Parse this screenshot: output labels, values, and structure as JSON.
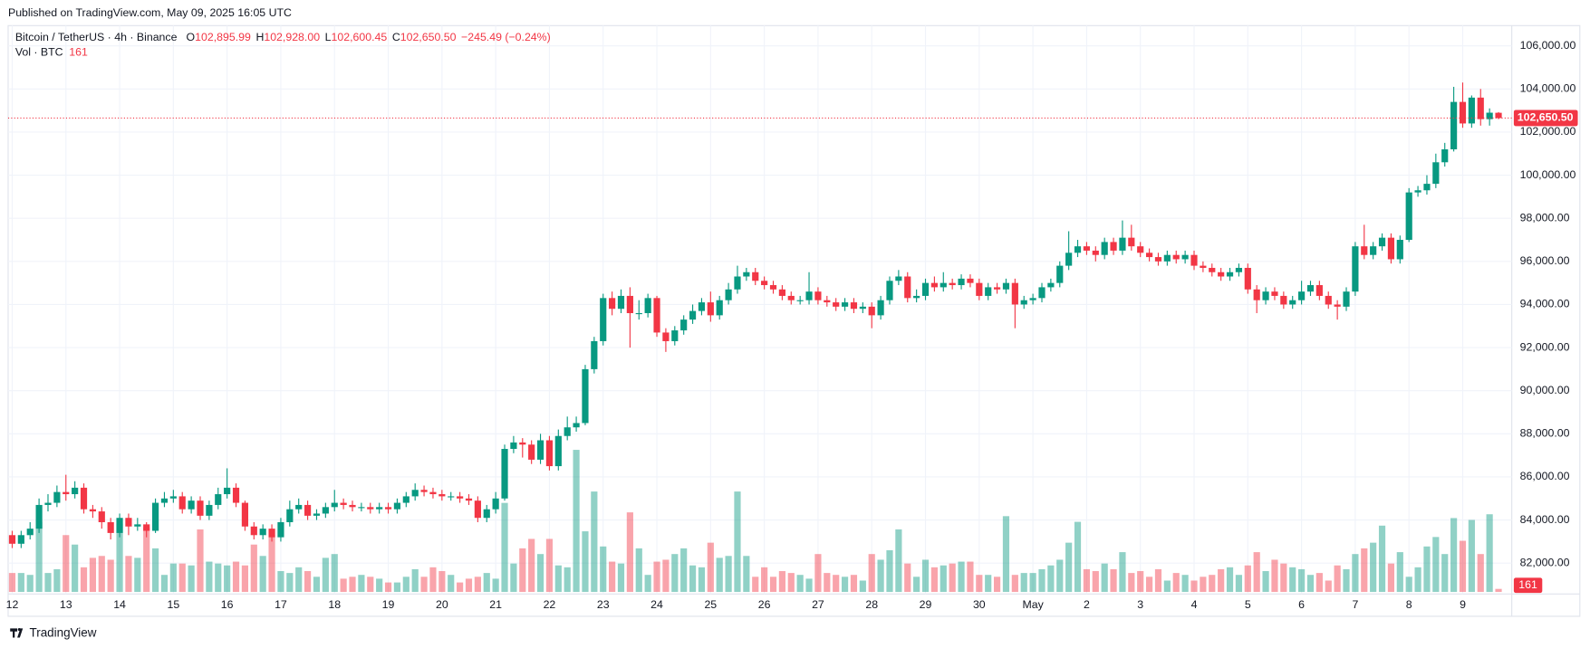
{
  "header": {
    "published": "Published on TradingView.com, May 09, 2025 16:05 UTC",
    "brand": "TradingView"
  },
  "chart_data": {
    "type": "candlestick",
    "title": "Bitcoin / TetherUS · 4h · Binance",
    "legend": [
      {
        "key": "O",
        "value": "102,895.99"
      },
      {
        "key": "H",
        "value": "102,928.00"
      },
      {
        "key": "L",
        "value": "102,600.45"
      },
      {
        "key": "C",
        "value": "102,650.50"
      }
    ],
    "change": "−245.49 (−0.24%)",
    "volume_title": "Vol · BTC",
    "colors": {
      "up": "#089981",
      "down": "#f23645"
    },
    "grid": true,
    "ylim": [
      80570,
      106940
    ],
    "yticks": [
      {
        "value": 82000,
        "label": "82,000.00"
      },
      {
        "value": 84000,
        "label": "84,000.00"
      },
      {
        "value": 86000,
        "label": "86,000.00"
      },
      {
        "value": 88000,
        "label": "88,000.00"
      },
      {
        "value": 90000,
        "label": "90,000.00"
      },
      {
        "value": 92000,
        "label": "92,000.00"
      },
      {
        "value": 94000,
        "label": "94,000.00"
      },
      {
        "value": 96000,
        "label": "96,000.00"
      },
      {
        "value": 98000,
        "label": "98,000.00"
      },
      {
        "value": 100000,
        "label": "100,000.00"
      },
      {
        "value": 102000,
        "label": "102,000.00"
      },
      {
        "value": 104000,
        "label": "104,000.00"
      },
      {
        "value": 106000,
        "label": "106,000.00"
      }
    ],
    "x_labels": [
      "12",
      "13",
      "14",
      "15",
      "16",
      "17",
      "18",
      "19",
      "20",
      "21",
      "22",
      "23",
      "24",
      "25",
      "26",
      "27",
      "28",
      "29",
      "30",
      "May",
      "2",
      "3",
      "4",
      "5",
      "6",
      "7",
      "8",
      "9"
    ],
    "open": [
      83300,
      82900,
      83300,
      83600,
      84700,
      84800,
      85300,
      85200,
      85500,
      84500,
      84400,
      83900,
      83400,
      84100,
      83700,
      83800,
      83500,
      84800,
      85000,
      85100,
      84500,
      84900,
      84200,
      84700,
      85200,
      85500,
      84800,
      83700,
      83300,
      83600,
      83200,
      83900,
      84500,
      84700,
      84200,
      84300,
      84600,
      84800,
      84700,
      84600,
      84600,
      84500,
      84600,
      84500,
      84800,
      85100,
      85400,
      85300,
      85200,
      85100,
      85100,
      85000,
      84900,
      84100,
      84500,
      85000,
      87300,
      87600,
      87500,
      86800,
      87700,
      86500,
      87900,
      88300,
      88500,
      91000,
      92300,
      94300,
      93800,
      94400,
      93600,
      93600,
      94300,
      92700,
      92300,
      92800,
      93300,
      93700,
      94100,
      93500,
      94200,
      94700,
      95300,
      95500,
      95100,
      94900,
      94700,
      94400,
      94200,
      94200,
      94600,
      94200,
      94100,
      93900,
      94100,
      93800,
      93900,
      93500,
      94200,
      95100,
      95300,
      94300,
      94400,
      95000,
      94800,
      95000,
      94900,
      95200,
      95000,
      94400,
      94800,
      94700,
      95000,
      94000,
      94200,
      94300,
      94800,
      95000,
      95800,
      96400,
      96700,
      96500,
      96300,
      96900,
      96500,
      97100,
      96700,
      96400,
      96200,
      96000,
      96300,
      96100,
      96300,
      95800,
      95700,
      95500,
      95300,
      95500,
      95700,
      94700,
      94200,
      94600,
      94400,
      94000,
      94200,
      94600,
      94900,
      94400,
      94000,
      93900,
      94600,
      96700,
      96300,
      96700,
      97100,
      96100,
      97000,
      99200,
      99300,
      99600,
      100600,
      101200,
      103400,
      102400,
      103600,
      102600,
      102895.99
    ],
    "high": [
      83500,
      83500,
      83900,
      85000,
      85200,
      85600,
      86100,
      85800,
      85700,
      84700,
      84600,
      84100,
      84300,
      84300,
      84100,
      83900,
      85000,
      85300,
      85400,
      85300,
      85100,
      85100,
      84900,
      85500,
      86400,
      85700,
      84900,
      83900,
      83800,
      83800,
      84100,
      84900,
      85000,
      84900,
      84500,
      84800,
      85400,
      85000,
      84900,
      84800,
      84800,
      84800,
      84800,
      85000,
      85300,
      85700,
      85600,
      85500,
      85400,
      85300,
      85300,
      85200,
      85100,
      84700,
      85300,
      87500,
      87900,
      87800,
      87700,
      88000,
      87900,
      88200,
      88800,
      88800,
      91200,
      92500,
      94500,
      94600,
      94700,
      94800,
      94200,
      94500,
      94400,
      92900,
      93000,
      93500,
      94000,
      94300,
      94600,
      94400,
      95000,
      95800,
      95700,
      95700,
      95300,
      95100,
      94900,
      94600,
      94400,
      95500,
      94800,
      94400,
      94300,
      94300,
      94300,
      94100,
      94100,
      94400,
      95300,
      95600,
      95500,
      94700,
      95200,
      95300,
      95500,
      95200,
      95400,
      95400,
      95200,
      95000,
      95000,
      95200,
      95200,
      94400,
      94500,
      95000,
      95200,
      96000,
      97400,
      97000,
      96900,
      96700,
      97100,
      97100,
      97900,
      97700,
      96900,
      96600,
      96400,
      96500,
      96500,
      96500,
      96500,
      96000,
      95900,
      95700,
      95700,
      95900,
      95900,
      94900,
      94800,
      94800,
      94600,
      94400,
      95100,
      95100,
      95100,
      94600,
      94200,
      94800,
      96900,
      97700,
      96900,
      97300,
      97300,
      97200,
      99400,
      99500,
      100000,
      101000,
      101500,
      104100,
      104300,
      103700,
      104000,
      103100,
      102928
    ],
    "low": [
      82700,
      82700,
      83100,
      83400,
      84400,
      84600,
      84900,
      85000,
      84300,
      84100,
      83600,
      83100,
      83200,
      83300,
      83500,
      83200,
      83400,
      84600,
      84800,
      84300,
      84300,
      84000,
      84000,
      84500,
      85000,
      84600,
      83500,
      83100,
      83100,
      83000,
      83000,
      83700,
      84300,
      84000,
      84000,
      84100,
      84400,
      84500,
      84400,
      84400,
      84300,
      84300,
      84300,
      84300,
      84600,
      84900,
      85100,
      85000,
      84900,
      84900,
      84800,
      84700,
      83900,
      83900,
      84300,
      84900,
      87100,
      86900,
      86600,
      86600,
      86300,
      86300,
      87700,
      88100,
      88400,
      90800,
      92100,
      93500,
      93600,
      92000,
      93300,
      93400,
      92500,
      91800,
      92100,
      92600,
      93100,
      93500,
      93200,
      93300,
      94000,
      94500,
      95100,
      94900,
      94700,
      94500,
      94200,
      94000,
      94000,
      94000,
      94000,
      93900,
      93700,
      93700,
      93600,
      93600,
      92900,
      93300,
      94000,
      94900,
      94100,
      94100,
      94200,
      94600,
      94600,
      94700,
      94700,
      94800,
      94200,
      94200,
      94500,
      94500,
      92900,
      93800,
      94000,
      94100,
      94600,
      94800,
      95600,
      96200,
      96300,
      96000,
      96100,
      96300,
      96300,
      96500,
      96200,
      96000,
      95800,
      95800,
      95900,
      95900,
      95600,
      95500,
      95300,
      95100,
      95100,
      95300,
      94500,
      93600,
      94000,
      94200,
      93800,
      93800,
      94000,
      94400,
      94200,
      93800,
      93300,
      93700,
      94400,
      96100,
      96100,
      96500,
      95900,
      95900,
      96900,
      99000,
      99100,
      99400,
      100400,
      101100,
      102200,
      102200,
      102300,
      102300,
      102600.45
    ],
    "close": [
      82900,
      83300,
      83600,
      84700,
      84800,
      85300,
      85200,
      85500,
      84500,
      84400,
      83900,
      83400,
      84100,
      83700,
      83800,
      83500,
      84800,
      85000,
      85100,
      84500,
      84900,
      84200,
      84700,
      85200,
      85500,
      84800,
      83700,
      83300,
      83600,
      83200,
      83900,
      84500,
      84700,
      84200,
      84300,
      84600,
      84800,
      84700,
      84600,
      84600,
      84500,
      84600,
      84500,
      84800,
      85100,
      85400,
      85300,
      85200,
      85100,
      85100,
      85000,
      84900,
      84100,
      84500,
      85000,
      87300,
      87600,
      87500,
      86800,
      87700,
      86500,
      87900,
      88300,
      88500,
      91000,
      92300,
      94300,
      93800,
      94400,
      93600,
      93600,
      94300,
      92700,
      92300,
      92800,
      93300,
      93700,
      94100,
      93500,
      94200,
      94700,
      95300,
      95500,
      95100,
      94900,
      94700,
      94400,
      94200,
      94200,
      94600,
      94200,
      94100,
      93900,
      94100,
      93800,
      93900,
      93500,
      94200,
      95100,
      95300,
      94300,
      94400,
      95000,
      94800,
      95000,
      94900,
      95200,
      95000,
      94400,
      94800,
      94700,
      95000,
      94000,
      94200,
      94300,
      94800,
      95000,
      95800,
      96400,
      96700,
      96500,
      96300,
      96900,
      96500,
      97100,
      96700,
      96400,
      96200,
      96000,
      96300,
      96100,
      96300,
      95800,
      95700,
      95500,
      95300,
      95500,
      95700,
      94700,
      94200,
      94600,
      94400,
      94000,
      94200,
      94600,
      94900,
      94400,
      94000,
      93900,
      94600,
      96700,
      96300,
      96700,
      97100,
      96100,
      97000,
      99200,
      99300,
      99600,
      100600,
      101200,
      103400,
      102400,
      103600,
      102600,
      102900,
      102650.5
    ],
    "volume": [
      1000,
      1000,
      900,
      3700,
      1000,
      1200,
      3000,
      2500,
      1300,
      1800,
      1900,
      1700,
      3600,
      1900,
      1800,
      3400,
      2300,
      900,
      1500,
      1500,
      1400,
      3300,
      1600,
      1500,
      1400,
      1600,
      1400,
      2500,
      1900,
      3000,
      1100,
      1000,
      1300,
      1100,
      800,
      1800,
      2000,
      700,
      800,
      900,
      800,
      700,
      500,
      500,
      800,
      1200,
      800,
      1300,
      1100,
      900,
      500,
      700,
      800,
      1000,
      700,
      4700,
      1500,
      2300,
      2800,
      2000,
      2800,
      1400,
      1300,
      7500,
      3200,
      5300,
      2400,
      1600,
      1500,
      4200,
      2300,
      900,
      1600,
      1700,
      2000,
      2300,
      1400,
      1300,
      2600,
      1800,
      1900,
      5300,
      1900,
      800,
      1300,
      800,
      1100,
      1000,
      900,
      700,
      2000,
      1000,
      900,
      800,
      900,
      600,
      2000,
      1700,
      2200,
      3300,
      1500,
      800,
      1700,
      1300,
      1400,
      1500,
      1600,
      1600,
      900,
      900,
      800,
      4000,
      900,
      1000,
      1000,
      1200,
      1400,
      1700,
      2600,
      3700,
      1200,
      1100,
      1500,
      1200,
      2100,
      1000,
      1100,
      800,
      1200,
      600,
      1000,
      900,
      600,
      800,
      900,
      1200,
      1300,
      900,
      1400,
      2100,
      1100,
      1700,
      1500,
      1300,
      1200,
      900,
      1000,
      600,
      1400,
      1200,
      2000,
      2300,
      2600,
      3500,
      1500,
      2100,
      800,
      1300,
      2400,
      2900,
      2000,
      3900,
      2700,
      3800,
      2000,
      4100,
      161
    ]
  }
}
